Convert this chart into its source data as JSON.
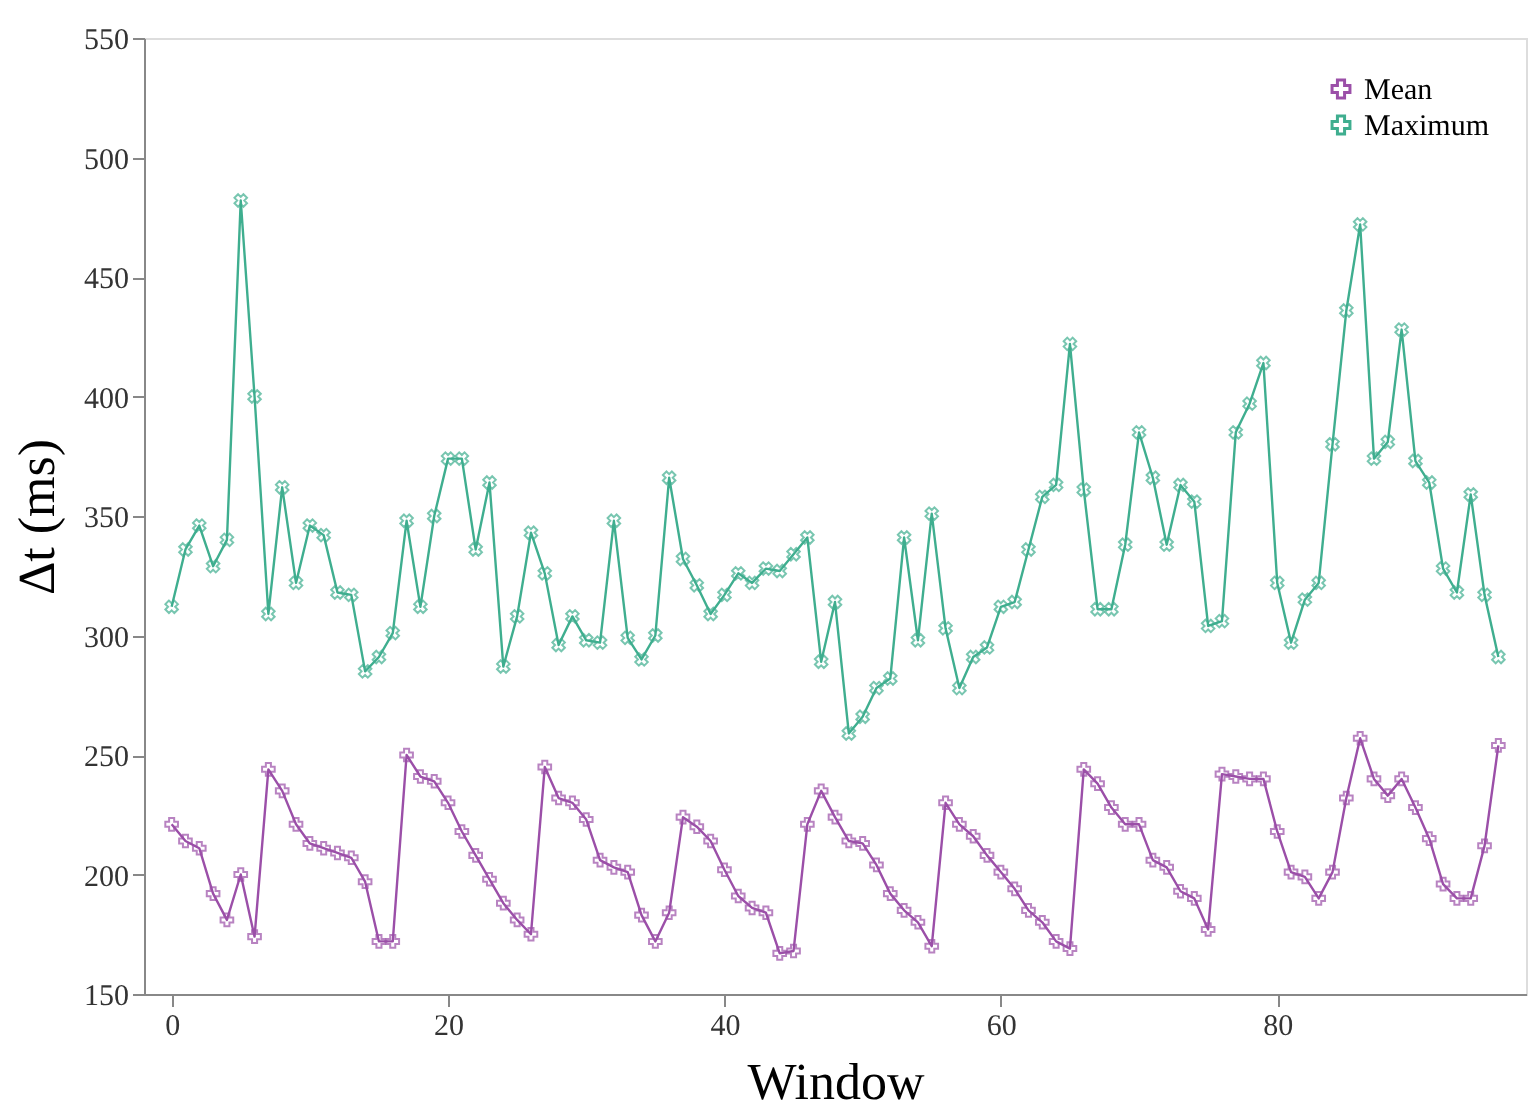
{
  "chart_data": {
    "type": "line",
    "xlabel": "Window",
    "ylabel": "Δt (ms)",
    "x": [
      0,
      1,
      2,
      3,
      4,
      5,
      6,
      7,
      8,
      9,
      10,
      11,
      12,
      13,
      14,
      15,
      16,
      17,
      18,
      19,
      20,
      21,
      22,
      23,
      24,
      25,
      26,
      27,
      28,
      29,
      30,
      31,
      32,
      33,
      34,
      35,
      36,
      37,
      38,
      39,
      40,
      41,
      42,
      43,
      44,
      45,
      46,
      47,
      48,
      49,
      50,
      51,
      52,
      53,
      54,
      55,
      56,
      57,
      58,
      59,
      60,
      61,
      62,
      63,
      64,
      65,
      66,
      67,
      68,
      69,
      70,
      71,
      72,
      73,
      74,
      75,
      76,
      77,
      78,
      79,
      80,
      81,
      82,
      83,
      84,
      85,
      86,
      87,
      88,
      89,
      90,
      91,
      92,
      93,
      94,
      95,
      96
    ],
    "series": [
      {
        "name": "Mean",
        "color": "#9b4fa8",
        "marker": "cross",
        "values": [
          221,
          214,
          211,
          192,
          181,
          200,
          174,
          244,
          235,
          221,
          213,
          211,
          209,
          207,
          197,
          172,
          172,
          250,
          241,
          239,
          230,
          218,
          208,
          198,
          188,
          181,
          175,
          245,
          232,
          230,
          223,
          206,
          203,
          201,
          183,
          172,
          184,
          224,
          220,
          214,
          202,
          191,
          186,
          184,
          167,
          168,
          221,
          235,
          224,
          214,
          213,
          204,
          192,
          185,
          180,
          170,
          230,
          221,
          216,
          208,
          201,
          194,
          185,
          180,
          172,
          169,
          244,
          238,
          228,
          221,
          221,
          206,
          203,
          193,
          190,
          177,
          242,
          241,
          240,
          240,
          218,
          201,
          199,
          190,
          201,
          232,
          257,
          240,
          233,
          240,
          228,
          215,
          196,
          190,
          190,
          212,
          254
        ]
      },
      {
        "name": "Maximum",
        "color": "#3fae8f",
        "marker": "cross",
        "values": [
          312,
          336,
          346,
          329,
          340,
          482,
          400,
          309,
          362,
          322,
          346,
          342,
          318,
          317,
          285,
          291,
          301,
          348,
          312,
          350,
          374,
          374,
          336,
          364,
          287,
          308,
          343,
          326,
          296,
          308,
          298,
          297,
          348,
          299,
          290,
          300,
          366,
          332,
          321,
          309,
          317,
          326,
          322,
          328,
          327,
          334,
          341,
          289,
          314,
          259,
          266,
          278,
          282,
          341,
          298,
          351,
          303,
          278,
          291,
          295,
          312,
          314,
          336,
          358,
          363,
          422,
          361,
          311,
          311,
          338,
          385,
          366,
          338,
          363,
          356,
          304,
          306,
          385,
          397,
          414,
          322,
          297,
          315,
          322,
          380,
          436,
          472,
          374,
          381,
          428,
          373,
          364,
          328,
          318,
          359,
          317,
          291
        ]
      }
    ],
    "xlim": [
      -2,
      98
    ],
    "xticks": [
      0,
      20,
      40,
      60,
      80
    ],
    "ylim": [
      150,
      550
    ],
    "yticks": [
      150,
      200,
      250,
      300,
      350,
      400,
      450,
      500,
      550
    ],
    "grid": false,
    "legend": "top right",
    "line_style": "solid"
  }
}
